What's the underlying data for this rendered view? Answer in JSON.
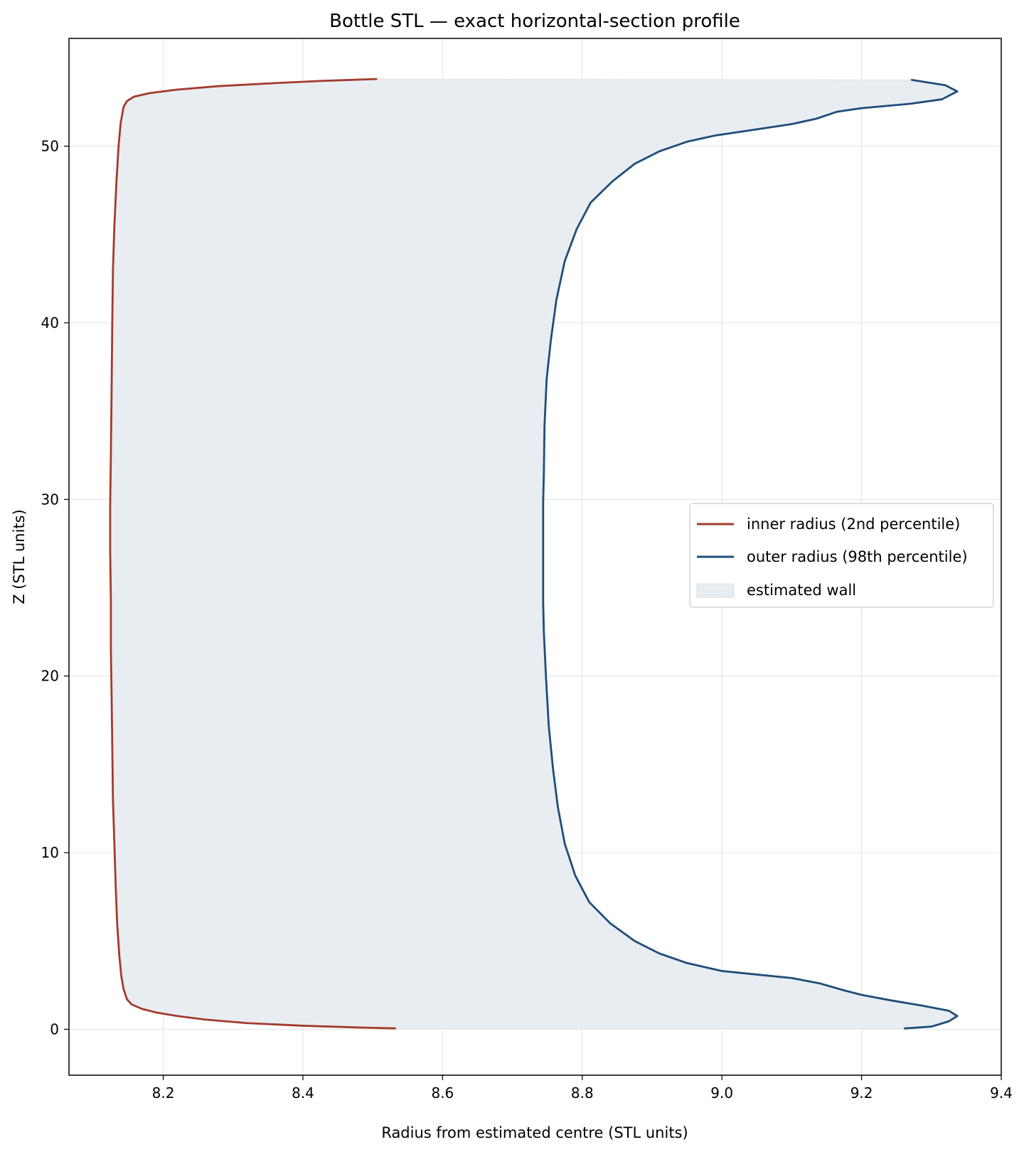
{
  "chart_data": {
    "type": "line",
    "title": "Bottle STL — exact horizontal-section profile",
    "xlabel": "Radius from estimated centre (STL units)",
    "ylabel": "Z (STL units)",
    "xlim": [
      8.065,
      9.4
    ],
    "ylim": [
      -2.6,
      56.1
    ],
    "xticks": [
      8.2,
      8.4,
      8.6,
      8.8,
      9.0,
      9.2,
      9.4
    ],
    "xtick_labels": [
      "8.2",
      "8.4",
      "8.6",
      "8.8",
      "9.0",
      "9.2",
      "9.4"
    ],
    "yticks": [
      0,
      10,
      20,
      30,
      40,
      50
    ],
    "ytick_labels": [
      "0",
      "10",
      "20",
      "30",
      "40",
      "50"
    ],
    "grid": true,
    "legend_position": "center-right",
    "series": [
      {
        "name": "inner radius (2nd percentile)",
        "color": "#a23b2c",
        "points": [
          [
            8.532,
            0.05
          ],
          [
            8.48,
            0.1
          ],
          [
            8.4,
            0.2
          ],
          [
            8.32,
            0.35
          ],
          [
            8.26,
            0.55
          ],
          [
            8.22,
            0.75
          ],
          [
            8.19,
            0.95
          ],
          [
            8.17,
            1.15
          ],
          [
            8.155,
            1.4
          ],
          [
            8.148,
            1.7
          ],
          [
            8.143,
            2.3
          ],
          [
            8.14,
            3.0
          ],
          [
            8.137,
            4.2
          ],
          [
            8.134,
            6.0
          ],
          [
            8.132,
            8.0
          ],
          [
            8.13,
            10.5
          ],
          [
            8.128,
            13.0
          ],
          [
            8.127,
            16.0
          ],
          [
            8.126,
            19.0
          ],
          [
            8.125,
            21.5
          ],
          [
            8.125,
            24.3
          ],
          [
            8.124,
            27.0
          ],
          [
            8.124,
            29.7
          ],
          [
            8.125,
            32.5
          ],
          [
            8.126,
            36.0
          ],
          [
            8.127,
            40.0
          ],
          [
            8.128,
            43.0
          ],
          [
            8.13,
            45.5
          ],
          [
            8.133,
            48.0
          ],
          [
            8.136,
            50.0
          ],
          [
            8.139,
            51.3
          ],
          [
            8.143,
            52.2
          ],
          [
            8.148,
            52.55
          ],
          [
            8.158,
            52.8
          ],
          [
            8.18,
            53.0
          ],
          [
            8.22,
            53.2
          ],
          [
            8.28,
            53.4
          ],
          [
            8.35,
            53.55
          ],
          [
            8.43,
            53.7
          ],
          [
            8.505,
            53.8
          ]
        ]
      },
      {
        "name": "outer radius (98th percentile)",
        "color": "#1f4e79",
        "points": [
          [
            9.262,
            0.05
          ],
          [
            9.3,
            0.15
          ],
          [
            9.325,
            0.45
          ],
          [
            9.337,
            0.75
          ],
          [
            9.325,
            1.05
          ],
          [
            9.285,
            1.35
          ],
          [
            9.24,
            1.65
          ],
          [
            9.2,
            1.95
          ],
          [
            9.175,
            2.2
          ],
          [
            9.14,
            2.6
          ],
          [
            9.1,
            2.9
          ],
          [
            9.05,
            3.1
          ],
          [
            9.0,
            3.3
          ],
          [
            8.95,
            3.75
          ],
          [
            8.91,
            4.3
          ],
          [
            8.875,
            5.0
          ],
          [
            8.84,
            6.0
          ],
          [
            8.81,
            7.2
          ],
          [
            8.79,
            8.7
          ],
          [
            8.775,
            10.5
          ],
          [
            8.765,
            12.6
          ],
          [
            8.758,
            14.8
          ],
          [
            8.752,
            17.2
          ],
          [
            8.748,
            20.0
          ],
          [
            8.745,
            22.5
          ],
          [
            8.744,
            24.2
          ],
          [
            8.744,
            27.0
          ],
          [
            8.744,
            29.8
          ],
          [
            8.745,
            31.5
          ],
          [
            8.746,
            34.2
          ],
          [
            8.749,
            36.8
          ],
          [
            8.755,
            39.0
          ],
          [
            8.763,
            41.3
          ],
          [
            8.775,
            43.5
          ],
          [
            8.792,
            45.3
          ],
          [
            8.812,
            46.8
          ],
          [
            8.843,
            48.0
          ],
          [
            8.875,
            49.0
          ],
          [
            8.91,
            49.7
          ],
          [
            8.95,
            50.25
          ],
          [
            8.99,
            50.6
          ],
          [
            9.05,
            50.95
          ],
          [
            9.1,
            51.25
          ],
          [
            9.135,
            51.55
          ],
          [
            9.165,
            51.95
          ],
          [
            9.2,
            52.15
          ],
          [
            9.27,
            52.4
          ],
          [
            9.315,
            52.65
          ],
          [
            9.337,
            53.1
          ],
          [
            9.32,
            53.45
          ],
          [
            9.272,
            53.75
          ]
        ]
      }
    ],
    "band": {
      "name": "estimated wall",
      "color": "#e8edf2",
      "between": [
        "inner radius (2nd percentile)",
        "outer radius (98th percentile)"
      ]
    }
  }
}
